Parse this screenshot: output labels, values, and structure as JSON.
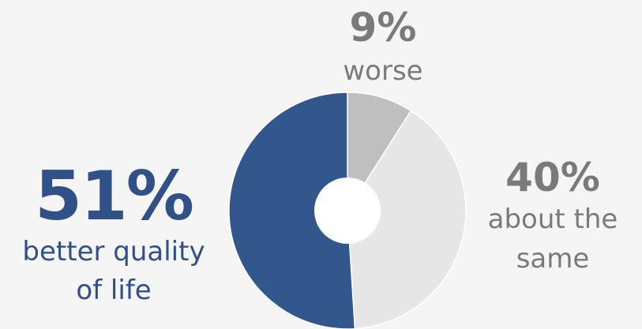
{
  "chart_data": {
    "type": "pie",
    "slices": [
      {
        "percent_label": "9%",
        "value": 9,
        "label": "worse",
        "color": "#bfbfbf",
        "text_color": "#7a7a7a"
      },
      {
        "percent_label": "40%",
        "value": 40,
        "label": "about the same",
        "color": "#e6e6e6",
        "text_color": "#7a7a7a"
      },
      {
        "percent_label": "51%",
        "value": 51,
        "label": "better quality of life",
        "color": "#32578c",
        "text_color": "#2f5188"
      }
    ],
    "center_color": "#ffffff"
  },
  "labels": {
    "better": {
      "pct": "51%",
      "line1": "better quality",
      "line2": "of life"
    },
    "worse": {
      "pct": "9%",
      "line1": "worse"
    },
    "same": {
      "pct": "40%",
      "line1": "about the",
      "line2": "same"
    }
  }
}
